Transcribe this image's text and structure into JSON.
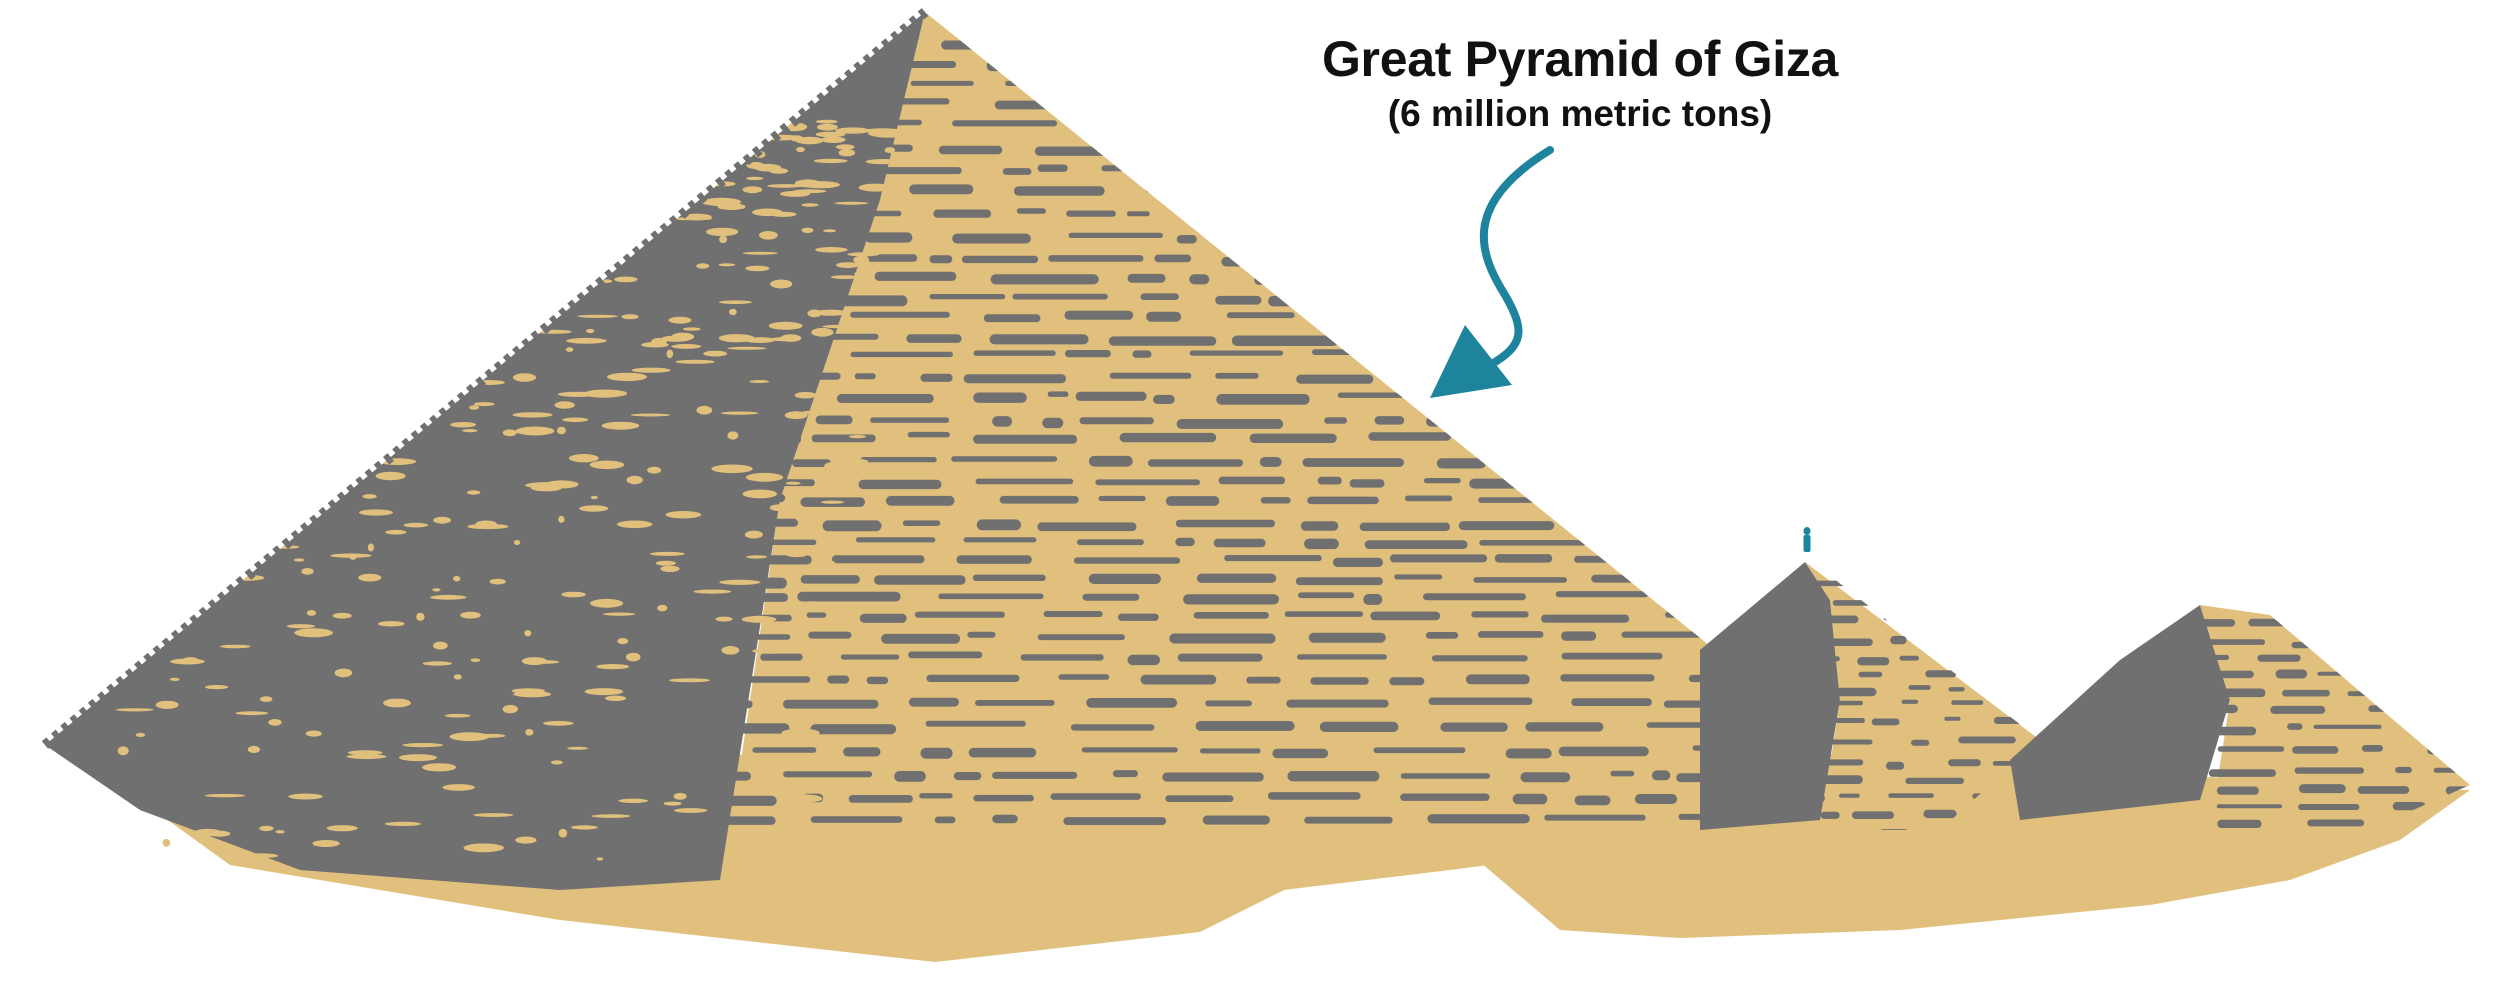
{
  "annotation": {
    "title": "Great Pyramid of Giza",
    "subtitle": "(6 million metric tons)"
  },
  "colors": {
    "stone_gray": "#707070",
    "sand": "#E0C07C",
    "accent_teal": "#1E849E",
    "text": "#111111",
    "background": "#FFFFFF"
  },
  "icons": {
    "pointer": "curved-arrow-icon",
    "figure": "tiny-person-icon"
  }
}
